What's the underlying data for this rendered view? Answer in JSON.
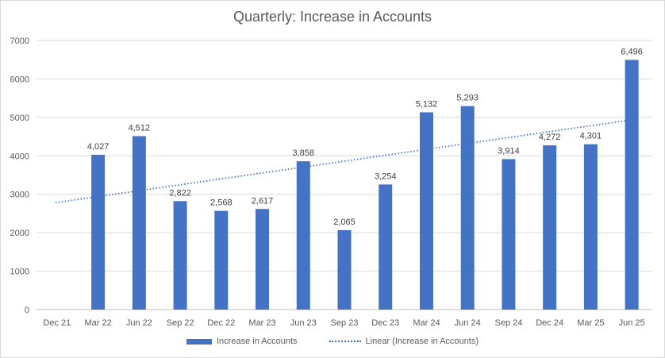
{
  "chart_data": {
    "type": "bar",
    "title": "Quarterly: Increase in Accounts",
    "xlabel": "",
    "ylabel": "",
    "ylim": [
      0,
      7000
    ],
    "yticks": [
      0,
      1000,
      2000,
      3000,
      4000,
      5000,
      6000,
      7000
    ],
    "grid": true,
    "legend_position": "bottom",
    "categories": [
      "Dec 21",
      "Mar 22",
      "Jun 22",
      "Sep 22",
      "Dec 22",
      "Mar 23",
      "Jun 23",
      "Sep 23",
      "Dec 23",
      "Mar 24",
      "Jun 24",
      "Sep 24",
      "Dec 24",
      "Mar 25",
      "Jun 25"
    ],
    "series": [
      {
        "name": "Increase in Accounts",
        "type": "bar",
        "color": "#4472c4",
        "values": [
          null,
          4027,
          4512,
          2822,
          2568,
          2617,
          3858,
          2065,
          3254,
          5132,
          5293,
          3914,
          4272,
          4301,
          6496
        ],
        "data_labels": [
          "",
          "4,027",
          "4,512",
          "2,822",
          "2,568",
          "2,617",
          "3,858",
          "2,065",
          "3,254",
          "5,132",
          "5,293",
          "3,914",
          "4,272",
          "4,301",
          "6,496"
        ]
      },
      {
        "name": "Linear (Increase in Accounts)",
        "type": "trendline",
        "color": "#4472c4",
        "start": 2780,
        "end": 4930
      }
    ]
  }
}
